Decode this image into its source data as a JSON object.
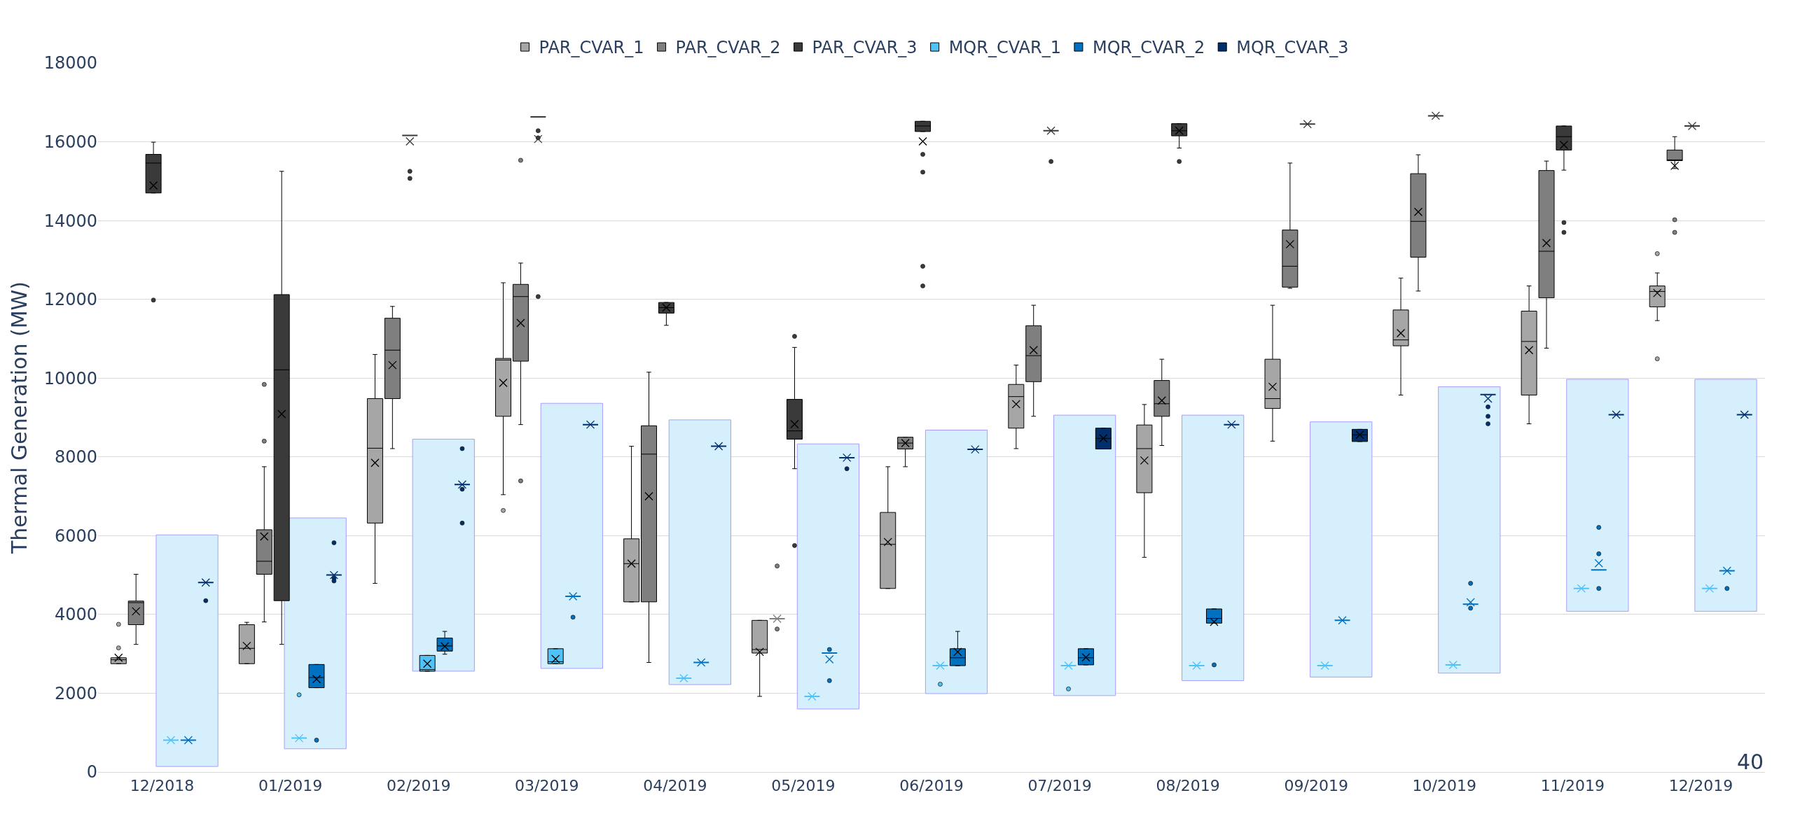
{
  "chart_data": {
    "type": "box",
    "ylabel": "Thermal Generation (MW)",
    "annotations": [
      "40"
    ],
    "categories": [
      "12/2018",
      "01/2019",
      "02/2019",
      "03/2019",
      "04/2019",
      "05/2019",
      "06/2019",
      "07/2019",
      "08/2019",
      "09/2019",
      "10/2019",
      "11/2019",
      "12/2019"
    ],
    "ylim": [
      0,
      18000
    ],
    "yticks": [
      0,
      2000,
      4000,
      6000,
      8000,
      10000,
      12000,
      14000,
      16000,
      18000
    ],
    "grid": "y",
    "legend": "top",
    "series": [
      {
        "type": "bar",
        "color": "#d6effd",
        "base": [
          140,
          590,
          2560,
          2630,
          2220,
          1600,
          1990,
          1940,
          2320,
          2410,
          2510,
          4080,
          4080
        ],
        "values": [
          5880,
          5860,
          5890,
          6730,
          6720,
          6730,
          6690,
          7120,
          6740,
          6480,
          7270,
          5890,
          5890
        ]
      },
      {
        "name": "PAR_CVAR_1",
        "color": "#a6a6a6",
        "boxes": [
          {
            "low": 2750,
            "q1": 2750,
            "median": 2850,
            "q3": 2900,
            "high": 2900,
            "mean": 2900,
            "outliers": [
              3150,
              3750
            ]
          },
          {
            "low": 2750,
            "q1": 2750,
            "median": 3140,
            "q3": 3740,
            "high": 3800,
            "mean": 3200
          },
          {
            "low": 4790,
            "q1": 6320,
            "median": 8220,
            "q3": 9480,
            "high": 10600,
            "mean": 7850
          },
          {
            "low": 7040,
            "q1": 9030,
            "median": 10460,
            "q3": 10500,
            "high": 12420,
            "mean": 9880,
            "outliers": [
              6640
            ]
          },
          {
            "low": 4320,
            "q1": 4320,
            "median": 5290,
            "q3": 5920,
            "high": 8270,
            "mean": 5290
          },
          {
            "low": 1920,
            "q1": 3020,
            "median": 3110,
            "q3": 3850,
            "high": 3850,
            "mean": 3050
          },
          {
            "low": 4660,
            "q1": 4660,
            "median": 5780,
            "q3": 6590,
            "high": 7750,
            "mean": 5840
          },
          {
            "low": 8210,
            "q1": 8730,
            "median": 9530,
            "q3": 9840,
            "high": 10330,
            "mean": 9340
          },
          {
            "low": 5450,
            "q1": 7090,
            "median": 8210,
            "q3": 8810,
            "high": 9330,
            "mean": 7910
          },
          {
            "low": 8400,
            "q1": 9230,
            "median": 9480,
            "q3": 10480,
            "high": 11850,
            "mean": 9780
          },
          {
            "low": 9570,
            "q1": 10820,
            "median": 10970,
            "q3": 11730,
            "high": 12540,
            "mean": 11140
          },
          {
            "low": 8840,
            "q1": 9570,
            "median": 10930,
            "q3": 11700,
            "high": 12340,
            "mean": 10710
          },
          {
            "low": 11460,
            "q1": 11810,
            "median": 12200,
            "q3": 12340,
            "high": 12670,
            "mean": 12160,
            "outliers": [
              13160,
              10490
            ]
          }
        ]
      },
      {
        "name": "PAR_CVAR_2",
        "color": "#7f7f7f",
        "boxes": [
          {
            "low": 3240,
            "q1": 3740,
            "median": 4300,
            "q3": 4340,
            "high": 5020,
            "mean": 4080
          },
          {
            "low": 3810,
            "q1": 5020,
            "median": 5350,
            "q3": 6150,
            "high": 7750,
            "mean": 5980,
            "outliers": [
              8400,
              9840
            ]
          },
          {
            "low": 8210,
            "q1": 9480,
            "median": 10710,
            "q3": 11520,
            "high": 11820,
            "mean": 10330
          },
          {
            "low": 8820,
            "q1": 10430,
            "median": 12070,
            "q3": 12380,
            "high": 12920,
            "mean": 11400,
            "outliers": [
              15530,
              7390
            ]
          },
          {
            "low": 2780,
            "q1": 4320,
            "median": 8070,
            "q3": 8790,
            "high": 10150,
            "mean": 7000
          },
          {
            "low": 3890,
            "q1": 3890,
            "median": 3890,
            "q3": 3890,
            "high": 3890,
            "mean": 3890,
            "outliers": [
              5230,
              3630
            ]
          },
          {
            "low": 7750,
            "q1": 8200,
            "median": 8350,
            "q3": 8500,
            "high": 8500,
            "mean": 8350
          },
          {
            "low": 9030,
            "q1": 9910,
            "median": 10570,
            "q3": 11330,
            "high": 11850,
            "mean": 10710
          },
          {
            "low": 8290,
            "q1": 9030,
            "median": 9350,
            "q3": 9940,
            "high": 10480,
            "mean": 9430
          },
          {
            "low": 12280,
            "q1": 12310,
            "median": 12840,
            "q3": 13760,
            "high": 15460,
            "mean": 13400
          },
          {
            "low": 12210,
            "q1": 13070,
            "median": 13980,
            "q3": 15190,
            "high": 15670,
            "mean": 14220
          },
          {
            "low": 10760,
            "q1": 12040,
            "median": 13220,
            "q3": 15270,
            "high": 15510,
            "mean": 13430
          },
          {
            "low": 15320,
            "q1": 15520,
            "median": 15540,
            "q3": 15790,
            "high": 16130,
            "mean": 15390,
            "outliers": [
              14020,
              13700
            ]
          }
        ]
      },
      {
        "name": "PAR_CVAR_3",
        "color": "#3a3a3a",
        "boxes": [
          {
            "low": 14700,
            "q1": 14700,
            "median": 15460,
            "q3": 15680,
            "high": 15990,
            "mean": 14890,
            "outliers": [
              11980
            ]
          },
          {
            "low": 3240,
            "q1": 4350,
            "median": 10210,
            "q3": 12120,
            "high": 15250,
            "mean": 9090
          },
          {
            "low": 16160,
            "q1": 16160,
            "median": 16160,
            "q3": 16160,
            "high": 16160,
            "mean": 16010,
            "outliers": [
              15250,
              15070
            ]
          },
          {
            "low": 16630,
            "q1": 16630,
            "median": 16630,
            "q3": 16630,
            "high": 16630,
            "mean": 16070,
            "outliers": [
              16280,
              16100,
              12070
            ]
          },
          {
            "low": 11340,
            "q1": 11650,
            "median": 11790,
            "q3": 11920,
            "high": 11920,
            "mean": 11790
          },
          {
            "low": 7700,
            "q1": 8450,
            "median": 8660,
            "q3": 9460,
            "high": 10780,
            "mean": 8830,
            "outliers": [
              11060,
              5750
            ]
          },
          {
            "low": 16260,
            "q1": 16260,
            "median": 16400,
            "q3": 16520,
            "high": 16520,
            "mean": 16010,
            "outliers": [
              15680,
              15230,
              12840,
              12340
            ]
          },
          {
            "low": 16280,
            "q1": 16280,
            "median": 16280,
            "q3": 16280,
            "high": 16280,
            "mean": 16280,
            "outliers": [
              15500
            ]
          },
          {
            "low": 15840,
            "q1": 16150,
            "median": 16280,
            "q3": 16460,
            "high": 16460,
            "mean": 16280,
            "outliers": [
              15500
            ]
          },
          {
            "low": 16450,
            "q1": 16450,
            "median": 16450,
            "q3": 16450,
            "high": 16450,
            "mean": 16450
          },
          {
            "low": 16660,
            "q1": 16660,
            "median": 16660,
            "q3": 16660,
            "high": 16660,
            "mean": 16660
          },
          {
            "low": 15280,
            "q1": 15790,
            "median": 16130,
            "q3": 16400,
            "high": 16400,
            "mean": 15920,
            "outliers": [
              13950,
              13700
            ]
          },
          {
            "low": 16400,
            "q1": 16400,
            "median": 16400,
            "q3": 16400,
            "high": 16400,
            "mean": 16400
          }
        ]
      },
      {
        "name": "MQR_CVAR_1",
        "color": "#4fc3f7",
        "boxes": [
          {
            "low": 810,
            "q1": 810,
            "median": 810,
            "q3": 810,
            "high": 810,
            "mean": 810
          },
          {
            "low": 860,
            "q1": 860,
            "median": 860,
            "q3": 860,
            "high": 860,
            "mean": 860,
            "outliers": [
              1960
            ]
          },
          {
            "low": 2560,
            "q1": 2560,
            "median": 2600,
            "q3": 2960,
            "high": 2960,
            "mean": 2750
          },
          {
            "low": 2750,
            "q1": 2750,
            "median": 2800,
            "q3": 3130,
            "high": 3130,
            "mean": 2870
          },
          {
            "low": 2380,
            "q1": 2380,
            "median": 2380,
            "q3": 2380,
            "high": 2380,
            "mean": 2380
          },
          {
            "low": 1920,
            "q1": 1920,
            "median": 1920,
            "q3": 1920,
            "high": 1920,
            "mean": 1920
          },
          {
            "low": 2700,
            "q1": 2700,
            "median": 2700,
            "q3": 2700,
            "high": 2700,
            "mean": 2700,
            "outliers": [
              2230
            ]
          },
          {
            "low": 2700,
            "q1": 2700,
            "median": 2700,
            "q3": 2700,
            "high": 2700,
            "mean": 2700,
            "outliers": [
              2110
            ]
          },
          {
            "low": 2700,
            "q1": 2700,
            "median": 2700,
            "q3": 2700,
            "high": 2700,
            "mean": 2700
          },
          {
            "low": 2700,
            "q1": 2700,
            "median": 2700,
            "q3": 2700,
            "high": 2700,
            "mean": 2700
          },
          {
            "low": 2720,
            "q1": 2720,
            "median": 2720,
            "q3": 2720,
            "high": 2720,
            "mean": 2720
          },
          {
            "low": 4660,
            "q1": 4660,
            "median": 4660,
            "q3": 4660,
            "high": 4660,
            "mean": 4660
          },
          {
            "low": 4660,
            "q1": 4660,
            "median": 4660,
            "q3": 4660,
            "high": 4660,
            "mean": 4660
          }
        ]
      },
      {
        "name": "MQR_CVAR_2",
        "color": "#0070c0",
        "boxes": [
          {
            "low": 810,
            "q1": 810,
            "median": 810,
            "q3": 810,
            "high": 810,
            "mean": 810
          },
          {
            "low": 2140,
            "q1": 2140,
            "median": 2400,
            "q3": 2730,
            "high": 2730,
            "mean": 2360,
            "outliers": [
              810
            ]
          },
          {
            "low": 2990,
            "q1": 3070,
            "median": 3200,
            "q3": 3400,
            "high": 3570,
            "mean": 3190
          },
          {
            "low": 4460,
            "q1": 4460,
            "median": 4460,
            "q3": 4460,
            "high": 4460,
            "mean": 4460,
            "outliers": [
              3930
            ]
          },
          {
            "low": 2780,
            "q1": 2780,
            "median": 2780,
            "q3": 2780,
            "high": 2780,
            "mean": 2780
          },
          {
            "low": 3020,
            "q1": 3020,
            "median": 3020,
            "q3": 3020,
            "high": 3020,
            "mean": 2860,
            "outliers": [
              3110,
              2320
            ]
          },
          {
            "low": 2700,
            "q1": 2700,
            "median": 2900,
            "q3": 3130,
            "high": 3570,
            "mean": 3050
          },
          {
            "low": 2720,
            "q1": 2720,
            "median": 2900,
            "q3": 3130,
            "high": 3130,
            "mean": 2910
          },
          {
            "low": 3780,
            "q1": 3780,
            "median": 3900,
            "q3": 4140,
            "high": 4140,
            "mean": 3810,
            "outliers": [
              2720
            ]
          },
          {
            "low": 3850,
            "q1": 3850,
            "median": 3850,
            "q3": 3850,
            "high": 3850,
            "mean": 3850
          },
          {
            "low": 4260,
            "q1": 4260,
            "median": 4260,
            "q3": 4260,
            "high": 4260,
            "mean": 4310,
            "outliers": [
              4790,
              4160
            ]
          },
          {
            "low": 5130,
            "q1": 5130,
            "median": 5130,
            "q3": 5130,
            "high": 5130,
            "mean": 5300,
            "outliers": [
              6210,
              5540,
              4660
            ]
          },
          {
            "low": 5110,
            "q1": 5110,
            "median": 5110,
            "q3": 5110,
            "high": 5110,
            "mean": 5110,
            "outliers": [
              4660
            ]
          }
        ]
      },
      {
        "name": "MQR_CVAR_3",
        "color": "#002f6c",
        "boxes": [
          {
            "low": 4810,
            "q1": 4810,
            "median": 4810,
            "q3": 4810,
            "high": 4810,
            "mean": 4810,
            "outliers": [
              4350
            ]
          },
          {
            "low": 5000,
            "q1": 5000,
            "median": 5000,
            "q3": 5000,
            "high": 5000,
            "mean": 5000,
            "outliers": [
              5820,
              4920,
              4850
            ]
          },
          {
            "low": 7300,
            "q1": 7300,
            "median": 7300,
            "q3": 7300,
            "high": 7300,
            "mean": 7300,
            "outliers": [
              8210,
              7180,
              6320
            ]
          },
          {
            "low": 8820,
            "q1": 8820,
            "median": 8820,
            "q3": 8820,
            "high": 8820,
            "mean": 8820
          },
          {
            "low": 8270,
            "q1": 8270,
            "median": 8270,
            "q3": 8270,
            "high": 8270,
            "mean": 8270
          },
          {
            "low": 7980,
            "q1": 7980,
            "median": 7980,
            "q3": 7980,
            "high": 7980,
            "mean": 7980,
            "outliers": [
              7700
            ]
          },
          {
            "low": 8190,
            "q1": 8190,
            "median": 8190,
            "q3": 8190,
            "high": 8190,
            "mean": 8190
          },
          {
            "low": 8200,
            "q1": 8200,
            "median": 8470,
            "q3": 8730,
            "high": 8730,
            "mean": 8470
          },
          {
            "low": 8820,
            "q1": 8820,
            "median": 8820,
            "q3": 8820,
            "high": 8820,
            "mean": 8820
          },
          {
            "low": 8390,
            "q1": 8390,
            "median": 8560,
            "q3": 8700,
            "high": 8700,
            "mean": 8560
          },
          {
            "low": 9580,
            "q1": 9580,
            "median": 9580,
            "q3": 9580,
            "high": 9580,
            "mean": 9480,
            "outliers": [
              9270,
              9030,
              8840
            ]
          },
          {
            "low": 9070,
            "q1": 9070,
            "median": 9070,
            "q3": 9070,
            "high": 9070,
            "mean": 9070
          },
          {
            "low": 9070,
            "q1": 9070,
            "median": 9070,
            "q3": 9070,
            "high": 9070,
            "mean": 9070
          }
        ]
      }
    ]
  }
}
